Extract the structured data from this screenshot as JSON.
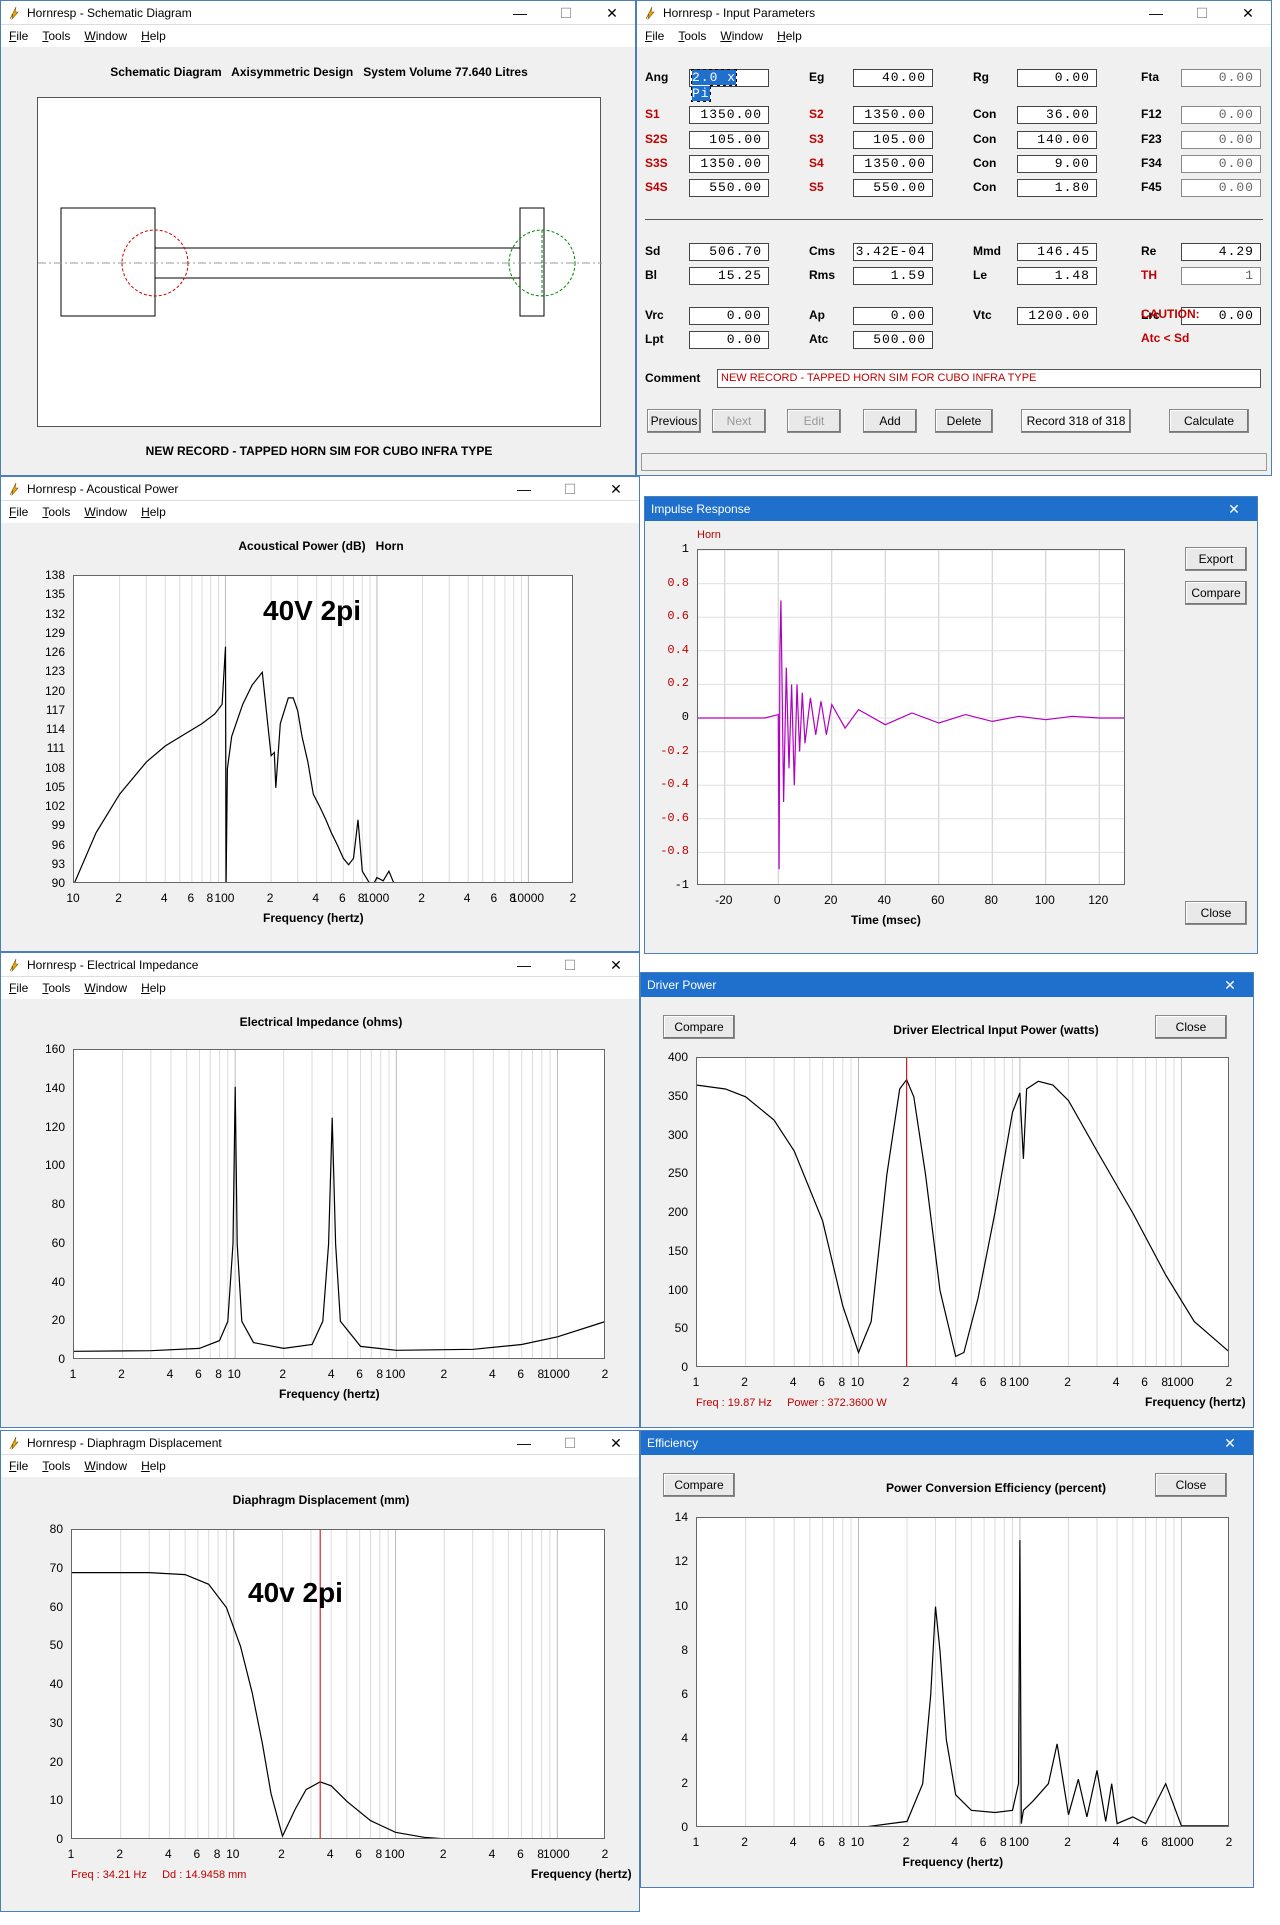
{
  "schematic": {
    "title": "Hornresp - Schematic Diagram",
    "menu": [
      "File",
      "Tools",
      "Window",
      "Help"
    ],
    "header": "Schematic Diagram   Axisymmetric Design   System Volume 77.640 Litres",
    "footer": "NEW RECORD - TAPPED HORN SIM FOR CUBO INFRA TYPE"
  },
  "input": {
    "title": "Hornresp - Input Parameters",
    "menu": [
      "File",
      "Tools",
      "Window",
      "Help"
    ],
    "params": [
      {
        "l": "Ang",
        "v": "2.0 x Pi",
        "c": "black",
        "sel": true
      },
      {
        "l": "Eg",
        "v": "40.00",
        "c": "black"
      },
      {
        "l": "Rg",
        "v": "0.00",
        "c": "black"
      },
      {
        "l": "Fta",
        "v": "0.00",
        "c": "black",
        "gray": true
      },
      {
        "l": "S1",
        "v": "1350.00",
        "c": "red"
      },
      {
        "l": "S2",
        "v": "1350.00",
        "c": "red"
      },
      {
        "l": "Con",
        "v": "36.00",
        "c": "black"
      },
      {
        "l": "F12",
        "v": "0.00",
        "c": "black",
        "gray": true
      },
      {
        "l": "S2S",
        "v": "105.00",
        "c": "red"
      },
      {
        "l": "S3",
        "v": "105.00",
        "c": "red"
      },
      {
        "l": "Con",
        "v": "140.00",
        "c": "black"
      },
      {
        "l": "F23",
        "v": "0.00",
        "c": "black",
        "gray": true
      },
      {
        "l": "S3S",
        "v": "1350.00",
        "c": "red"
      },
      {
        "l": "S4",
        "v": "1350.00",
        "c": "red"
      },
      {
        "l": "Con",
        "v": "9.00",
        "c": "black"
      },
      {
        "l": "F34",
        "v": "0.00",
        "c": "black",
        "gray": true
      },
      {
        "l": "S4S",
        "v": "550.00",
        "c": "red"
      },
      {
        "l": "S5",
        "v": "550.00",
        "c": "red"
      },
      {
        "l": "Con",
        "v": "1.80",
        "c": "black"
      },
      {
        "l": "F45",
        "v": "0.00",
        "c": "black",
        "gray": true
      },
      {
        "l": "Sd",
        "v": "506.70",
        "c": "black"
      },
      {
        "l": "Cms",
        "v": "3.42E-04",
        "c": "black"
      },
      {
        "l": "Mmd",
        "v": "146.45",
        "c": "black"
      },
      {
        "l": "Re",
        "v": "4.29",
        "c": "black"
      },
      {
        "l": "Bl",
        "v": "15.25",
        "c": "black"
      },
      {
        "l": "Rms",
        "v": "1.59",
        "c": "black"
      },
      {
        "l": "Le",
        "v": "1.48",
        "c": "black"
      },
      {
        "l": "TH",
        "v": "1",
        "c": "red",
        "gray": true
      },
      {
        "l": "Vrc",
        "v": "0.00",
        "c": "black"
      },
      {
        "l": "Ap",
        "v": "0.00",
        "c": "black"
      },
      {
        "l": "Vtc",
        "v": "1200.00",
        "c": "black"
      },
      {
        "l": "Lrc",
        "v": "0.00",
        "c": "black"
      },
      {
        "l": "Lpt",
        "v": "0.00",
        "c": "black"
      },
      {
        "l": "Atc",
        "v": "500.00",
        "c": "black"
      }
    ],
    "caution": "CAUTION:",
    "caution2": "Atc < Sd",
    "comment_label": "Comment",
    "comment": "NEW RECORD - TAPPED HORN SIM FOR CUBO INFRA TYPE",
    "buttons": {
      "previous": "Previous",
      "next": "Next",
      "edit": "Edit",
      "add": "Add",
      "delete": "Delete",
      "record": "Record 318 of 318",
      "calculate": "Calculate"
    }
  },
  "acoustic": {
    "title": "Hornresp - Acoustical Power",
    "menu": [
      "File",
      "Tools",
      "Window",
      "Help"
    ],
    "header": "Acoustical Power (dB)   Horn",
    "note": "40V 2pi",
    "xlabel": "Frequency (hertz)"
  },
  "impulse": {
    "title": "Impulse Response",
    "legend": "Horn",
    "xlabel": "Time (msec)",
    "export": "Export",
    "compare": "Compare",
    "close": "Close"
  },
  "impedance": {
    "title": "Hornresp - Electrical Impedance",
    "menu": [
      "File",
      "Tools",
      "Window",
      "Help"
    ],
    "header": "Electrical Impedance (ohms)",
    "xlabel": "Frequency (hertz)"
  },
  "driver": {
    "title": "Driver Power",
    "compare": "Compare",
    "close": "Close",
    "header": "Driver Electrical Input Power (watts)",
    "xlabel": "Frequency (hertz)",
    "status": "Freq : 19.87 Hz     Power : 372.3600 W"
  },
  "displacement": {
    "title": "Hornresp - Diaphragm Displacement",
    "menu": [
      "File",
      "Tools",
      "Window",
      "Help"
    ],
    "header": "Diaphragm Displacement (mm)",
    "note": "40v 2pi",
    "xlabel": "Frequency (hertz)",
    "status": "Freq : 34.21 Hz     Dd : 14.9458 mm"
  },
  "efficiency": {
    "title": "Efficiency",
    "compare": "Compare",
    "close": "Close",
    "header": "Power Conversion Efficiency (percent)",
    "xlabel": "Frequency (hertz)"
  },
  "chart_data": [
    {
      "type": "line",
      "title": "Acoustical Power (dB)   Horn",
      "xlabel": "Frequency (hertz)",
      "xscale": "log",
      "xlim": [
        10,
        20000
      ],
      "ylim": [
        90,
        138
      ],
      "yticks": [
        90,
        93,
        96,
        99,
        102,
        105,
        108,
        111,
        114,
        117,
        120,
        123,
        126,
        129,
        132,
        135,
        138
      ],
      "xticklabels": [
        "10",
        "2",
        "4",
        "6",
        "8",
        "100",
        "2",
        "4",
        "6",
        "8",
        "1000",
        "2",
        "4",
        "6",
        "8",
        "10000",
        "2"
      ],
      "series": [
        {
          "name": "Horn",
          "x": [
            10,
            14,
            20,
            30,
            40,
            55,
            70,
            85,
            95,
            100,
            101,
            103,
            110,
            130,
            150,
            175,
            200,
            210,
            215,
            230,
            260,
            280,
            300,
            320,
            350,
            380,
            420,
            460,
            500,
            550,
            600,
            650,
            700,
            750,
            800,
            850,
            900,
            950,
            1000,
            1100,
            1200,
            1300
          ],
          "y": [
            90,
            98,
            104,
            109,
            111.5,
            113.5,
            115,
            116.5,
            118,
            127,
            90,
            108,
            113,
            118,
            121,
            123,
            110,
            110.5,
            105,
            115,
            119,
            119,
            117,
            113,
            109,
            104,
            102,
            100,
            98,
            96,
            94,
            93,
            94,
            100,
            92,
            91,
            90,
            90,
            91,
            90.5,
            92,
            90
          ]
        }
      ]
    },
    {
      "type": "line",
      "title": "Impulse Response",
      "xlabel": "Time (msec)",
      "xlim": [
        -30,
        130
      ],
      "ylim": [
        -1,
        1
      ],
      "yticks": [
        -1,
        -0.8,
        -0.6,
        -0.4,
        -0.2,
        0,
        0.2,
        0.4,
        0.6,
        0.8,
        1
      ],
      "xticks": [
        -20,
        0,
        20,
        40,
        60,
        80,
        100,
        120
      ],
      "series": [
        {
          "name": "Horn",
          "x": [
            -30,
            -5,
            0,
            0.3,
            0.6,
            1,
            1.5,
            2,
            3,
            4,
            5,
            6,
            7,
            8,
            9,
            10,
            12,
            14,
            16,
            18,
            20,
            25,
            30,
            40,
            50,
            60,
            70,
            80,
            90,
            100,
            110,
            120,
            130
          ],
          "y": [
            0,
            0,
            0.02,
            -0.9,
            0.4,
            0.7,
            0.1,
            -0.5,
            0.3,
            -0.3,
            0.2,
            -0.4,
            0.2,
            -0.2,
            0.15,
            -0.15,
            0.12,
            -0.1,
            0.1,
            -0.1,
            0.08,
            -0.06,
            0.05,
            -0.04,
            0.03,
            -0.03,
            0.02,
            -0.02,
            0.01,
            -0.01,
            0.01,
            0,
            0
          ]
        }
      ]
    },
    {
      "type": "line",
      "title": "Electrical Impedance (ohms)",
      "xlabel": "Frequency (hertz)",
      "xscale": "log",
      "xlim": [
        1,
        2000
      ],
      "ylim": [
        0,
        160
      ],
      "yticks": [
        0,
        20,
        40,
        60,
        80,
        100,
        120,
        140,
        160
      ],
      "xticklabels": [
        "1",
        "2",
        "4",
        "6",
        "8",
        "10",
        "2",
        "4",
        "6",
        "8",
        "100",
        "2",
        "4",
        "6",
        "8",
        "1000",
        "2"
      ],
      "series": [
        {
          "x": [
            1,
            3,
            6,
            8,
            9,
            9.7,
            10,
            10.3,
            11,
            13,
            20,
            30,
            35,
            38,
            40,
            42,
            45,
            60,
            100,
            300,
            600,
            1000,
            2000
          ],
          "y": [
            4.5,
            4.8,
            6,
            10,
            20,
            60,
            141,
            60,
            20,
            9,
            6,
            8,
            20,
            60,
            125,
            60,
            20,
            7,
            5,
            5.5,
            8,
            12,
            20
          ]
        }
      ]
    },
    {
      "type": "line",
      "title": "Driver Electrical Input Power (watts)",
      "xlabel": "Frequency (hertz)",
      "xscale": "log",
      "xlim": [
        1,
        2000
      ],
      "ylim": [
        0,
        400
      ],
      "yticks": [
        0,
        50,
        100,
        150,
        200,
        250,
        300,
        350,
        400
      ],
      "xticklabels": [
        "1",
        "2",
        "4",
        "6",
        "8",
        "10",
        "2",
        "4",
        "6",
        "8",
        "100",
        "2",
        "4",
        "6",
        "8",
        "1000",
        "2"
      ],
      "series": [
        {
          "x": [
            1,
            1.5,
            2,
            3,
            4,
            6,
            8,
            10,
            12,
            15,
            18,
            19.87,
            22,
            26,
            32,
            40,
            45,
            55,
            70,
            90,
            100,
            105,
            110,
            130,
            160,
            200,
            300,
            500,
            800,
            1200,
            2000
          ],
          "y": [
            365,
            360,
            350,
            320,
            280,
            190,
            80,
            20,
            60,
            250,
            360,
            372,
            350,
            250,
            100,
            15,
            20,
            90,
            200,
            330,
            355,
            270,
            360,
            370,
            365,
            345,
            280,
            200,
            120,
            60,
            20
          ]
        }
      ]
    },
    {
      "type": "line",
      "title": "Diaphragm Displacement (mm)",
      "xlabel": "Frequency (hertz)",
      "xscale": "log",
      "xlim": [
        1,
        2000
      ],
      "ylim": [
        0,
        80
      ],
      "yticks": [
        0,
        10,
        20,
        30,
        40,
        50,
        60,
        70,
        80
      ],
      "xticklabels": [
        "1",
        "2",
        "4",
        "6",
        "8",
        "10",
        "2",
        "4",
        "6",
        "8",
        "100",
        "2",
        "4",
        "6",
        "8",
        "1000",
        "2"
      ],
      "series": [
        {
          "x": [
            1,
            3,
            5,
            7,
            9,
            11,
            13,
            15,
            17,
            20,
            24,
            28,
            34.21,
            40,
            50,
            70,
            100,
            150,
            200,
            300,
            500,
            1000,
            2000
          ],
          "y": [
            69,
            69,
            68.5,
            66,
            60,
            50,
            38,
            25,
            12,
            1,
            8,
            13,
            15,
            14,
            10,
            5,
            2,
            0.7,
            0.3,
            0.1,
            0,
            0,
            0
          ]
        }
      ]
    },
    {
      "type": "line",
      "title": "Power Conversion Efficiency (percent)",
      "xlabel": "Frequency (hertz)",
      "xscale": "log",
      "xlim": [
        1,
        2000
      ],
      "ylim": [
        0,
        14
      ],
      "yticks": [
        0,
        2,
        4,
        6,
        8,
        10,
        12,
        14
      ],
      "xticklabels": [
        "1",
        "2",
        "4",
        "6",
        "8",
        "10",
        "2",
        "4",
        "6",
        "8",
        "100",
        "2",
        "4",
        "6",
        "8",
        "1000",
        "2"
      ],
      "series": [
        {
          "x": [
            1,
            5,
            10,
            20,
            25,
            28,
            30,
            32,
            35,
            40,
            50,
            70,
            90,
            98,
            100,
            102,
            105,
            120,
            150,
            170,
            200,
            230,
            260,
            300,
            340,
            370,
            400,
            500,
            600,
            800,
            1000,
            2000
          ],
          "y": [
            0,
            0,
            0.01,
            0.3,
            2,
            6,
            10,
            8,
            4,
            1.5,
            0.8,
            0.7,
            0.8,
            2,
            13,
            0.2,
            0.8,
            1.2,
            2,
            3.8,
            0.6,
            2.2,
            0.5,
            2.6,
            0.3,
            2,
            0.2,
            0.5,
            0.2,
            2,
            0.1,
            0.1
          ]
        }
      ]
    }
  ]
}
